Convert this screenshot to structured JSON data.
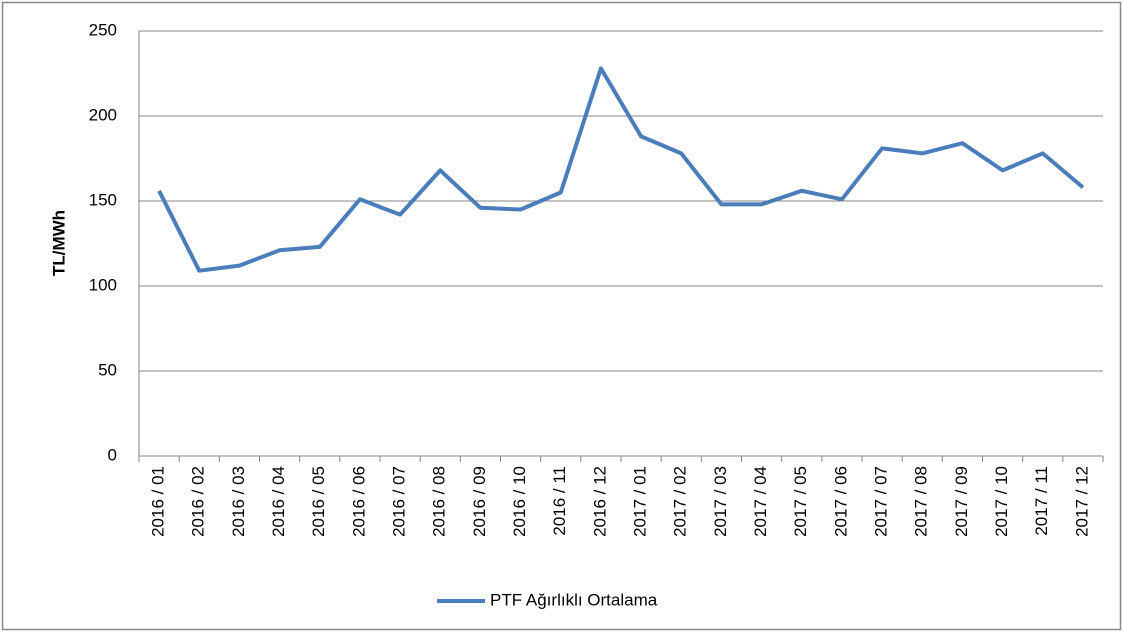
{
  "chart_data": {
    "type": "line",
    "y_label": "TL/MWh",
    "categories": [
      "2016 / 01",
      "2016 / 02",
      "2016 / 03",
      "2016 / 04",
      "2016 / 05",
      "2016 / 06",
      "2016 / 07",
      "2016 / 08",
      "2016 / 09",
      "2016 / 10",
      "2016 / 11",
      "2016 / 12",
      "2017 / 01",
      "2017 / 02",
      "2017 / 03",
      "2017 / 04",
      "2017 / 05",
      "2017 / 06",
      "2017 / 07",
      "2017 / 08",
      "2017 / 09",
      "2017 / 10",
      "2017 / 11",
      "2017 / 12"
    ],
    "series": [
      {
        "name": "PTF Ağırlıklı Ortalama",
        "color": "#4a7ebb",
        "values": [
          156,
          109,
          112,
          121,
          123,
          151,
          142,
          168,
          146,
          145,
          155,
          228,
          188,
          178,
          148,
          148,
          156,
          151,
          181,
          178,
          184,
          168,
          178,
          158
        ]
      }
    ],
    "ylim": [
      0,
      250
    ],
    "yticks": [
      0,
      50,
      100,
      150,
      200,
      250
    ],
    "grid": true,
    "legend": "bottom"
  }
}
